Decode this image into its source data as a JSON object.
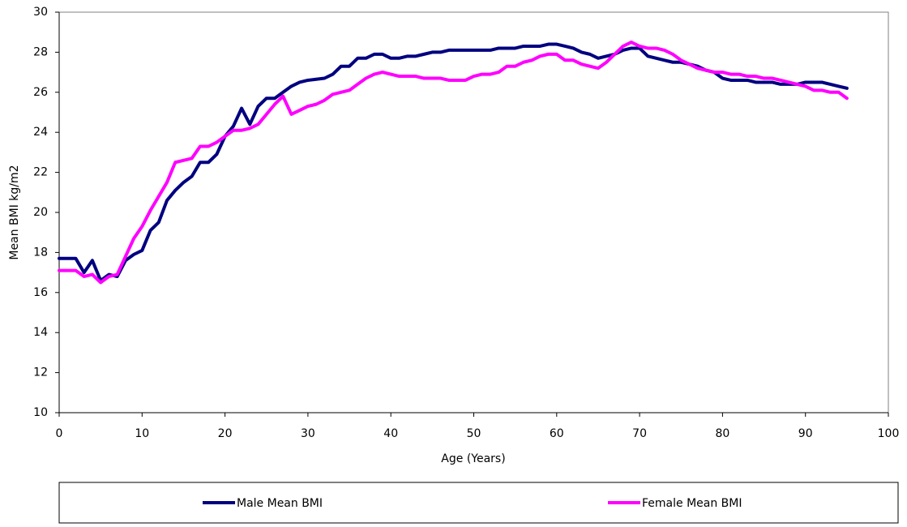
{
  "chart_data": {
    "type": "line",
    "x_label": "Age (Years)",
    "y_label": "Mean BMI kg/m2",
    "x": [
      0,
      1,
      2,
      3,
      4,
      5,
      6,
      7,
      8,
      9,
      10,
      11,
      12,
      13,
      14,
      15,
      16,
      17,
      18,
      19,
      20,
      21,
      22,
      23,
      24,
      25,
      26,
      27,
      28,
      29,
      30,
      31,
      32,
      33,
      34,
      35,
      36,
      37,
      38,
      39,
      40,
      41,
      42,
      43,
      44,
      45,
      46,
      47,
      48,
      49,
      50,
      51,
      52,
      53,
      54,
      55,
      56,
      57,
      58,
      59,
      60,
      61,
      62,
      63,
      64,
      65,
      66,
      67,
      68,
      69,
      70,
      71,
      72,
      73,
      74,
      75,
      76,
      77,
      78,
      79,
      80,
      81,
      82,
      83,
      84,
      85,
      86,
      87,
      88,
      89,
      90,
      91,
      92,
      93,
      94,
      95
    ],
    "series": [
      {
        "name": "Male Mean BMI",
        "color": "#000080",
        "values": [
          17.7,
          17.7,
          17.7,
          17.0,
          17.6,
          16.6,
          16.9,
          16.8,
          17.6,
          17.9,
          18.1,
          19.1,
          19.5,
          20.6,
          21.1,
          21.5,
          21.8,
          22.5,
          22.5,
          22.9,
          23.8,
          24.3,
          25.2,
          24.4,
          25.3,
          25.7,
          25.7,
          26.0,
          26.3,
          26.5,
          26.6,
          26.65,
          26.7,
          26.9,
          27.3,
          27.3,
          27.7,
          27.7,
          27.9,
          27.9,
          27.7,
          27.7,
          27.8,
          27.8,
          27.9,
          28.0,
          28.0,
          28.1,
          28.1,
          28.1,
          28.1,
          28.1,
          28.1,
          28.2,
          28.2,
          28.2,
          28.3,
          28.3,
          28.3,
          28.4,
          28.4,
          28.3,
          28.2,
          28.0,
          27.9,
          27.7,
          27.8,
          27.9,
          28.1,
          28.2,
          28.2,
          27.8,
          27.7,
          27.6,
          27.5,
          27.5,
          27.4,
          27.3,
          27.1,
          27.0,
          26.7,
          26.6,
          26.6,
          26.6,
          26.5,
          26.5,
          26.5,
          26.4,
          26.4,
          26.4,
          26.5,
          26.5,
          26.5,
          26.4,
          26.3,
          26.2
        ]
      },
      {
        "name": "Female Mean BMI",
        "color": "#ff00ff",
        "values": [
          17.1,
          17.1,
          17.1,
          16.8,
          16.9,
          16.5,
          16.8,
          16.9,
          17.8,
          18.7,
          19.3,
          20.1,
          20.8,
          21.5,
          22.5,
          22.6,
          22.7,
          23.3,
          23.3,
          23.5,
          23.8,
          24.1,
          24.1,
          24.2,
          24.4,
          24.9,
          25.4,
          25.8,
          24.9,
          25.1,
          25.3,
          25.4,
          25.6,
          25.9,
          26.0,
          26.1,
          26.4,
          26.7,
          26.9,
          27.0,
          26.9,
          26.8,
          26.8,
          26.8,
          26.7,
          26.7,
          26.7,
          26.6,
          26.6,
          26.6,
          26.8,
          26.9,
          26.9,
          27.0,
          27.3,
          27.3,
          27.5,
          27.6,
          27.8,
          27.9,
          27.9,
          27.6,
          27.6,
          27.4,
          27.3,
          27.2,
          27.5,
          27.9,
          28.3,
          28.5,
          28.3,
          28.2,
          28.2,
          28.1,
          27.9,
          27.6,
          27.4,
          27.2,
          27.1,
          27.0,
          27.0,
          26.9,
          26.9,
          26.8,
          26.8,
          26.7,
          26.7,
          26.6,
          26.5,
          26.4,
          26.3,
          26.1,
          26.1,
          26.0,
          26.0,
          25.7
        ]
      }
    ],
    "xlim": [
      0,
      100
    ],
    "xticks": [
      0,
      10,
      20,
      30,
      40,
      50,
      60,
      70,
      80,
      90,
      100
    ],
    "ylim": [
      10,
      30
    ],
    "yticks": [
      10,
      12,
      14,
      16,
      18,
      20,
      22,
      24,
      26,
      28,
      30
    ],
    "grid": false,
    "legend": "bottom"
  }
}
